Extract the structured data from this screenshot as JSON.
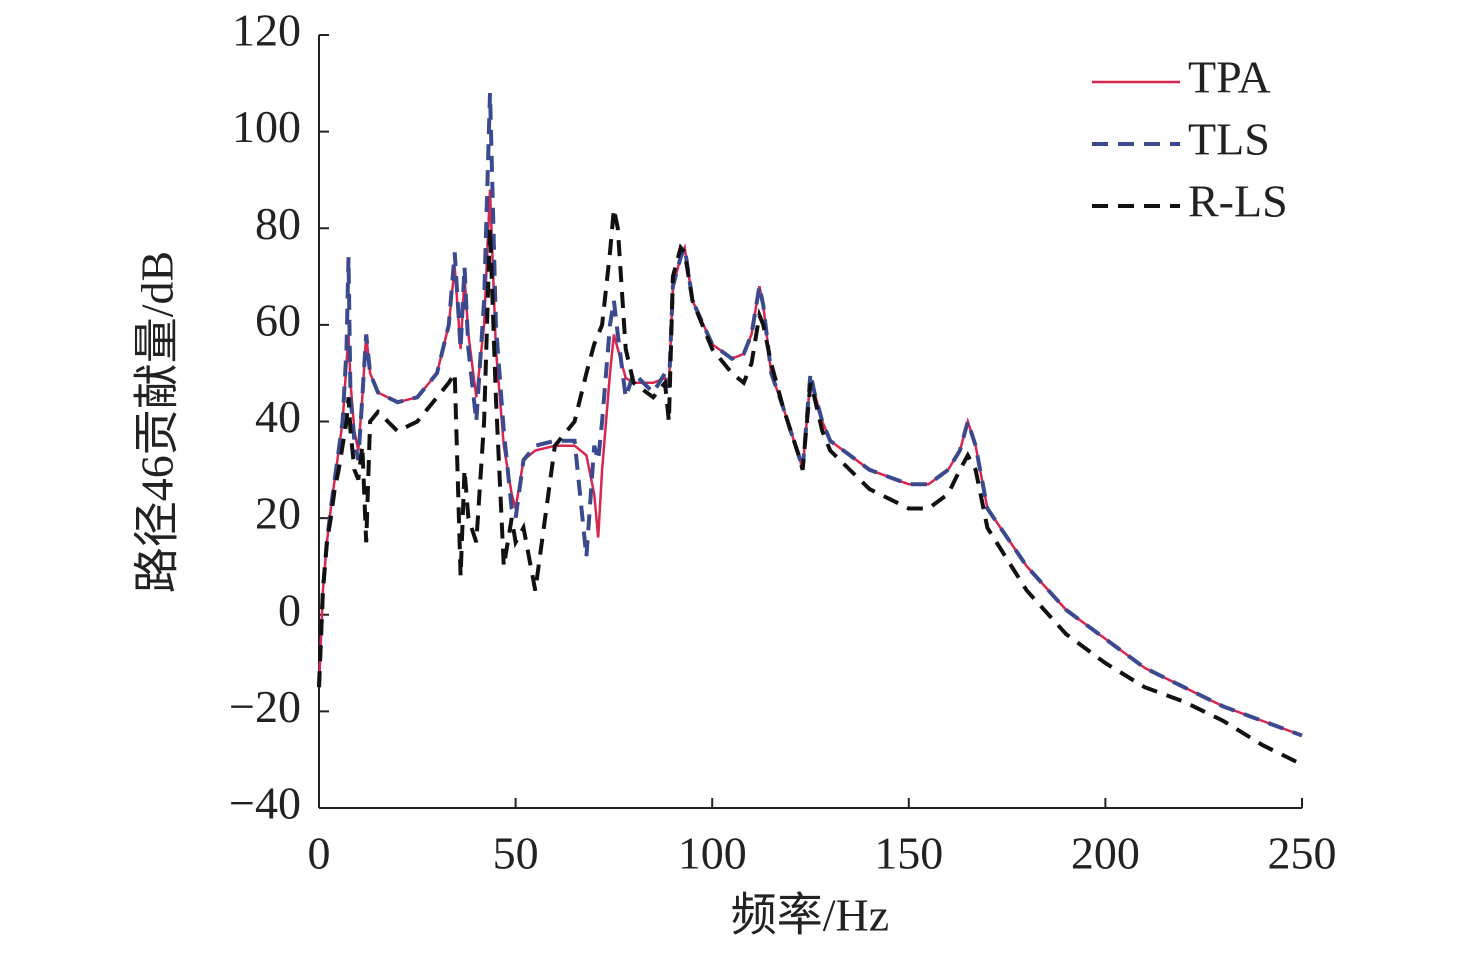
{
  "chart_data": {
    "type": "line",
    "xlabel": "频率/Hz",
    "ylabel": "路径46贡献量/dB",
    "x": [
      0,
      1,
      2,
      3,
      4,
      5,
      6,
      7,
      7.5,
      8,
      9,
      10,
      11,
      12,
      13,
      15,
      20,
      25,
      30,
      33,
      34.5,
      36,
      37,
      38,
      40,
      42,
      43.5,
      45,
      47,
      49,
      50,
      52,
      55,
      60,
      65,
      68,
      70,
      71,
      72,
      74,
      75,
      76,
      78,
      80,
      85,
      88,
      89,
      90,
      92,
      93,
      95,
      100,
      105,
      108,
      110,
      112,
      113,
      115,
      118,
      120,
      122,
      123,
      125,
      126,
      128,
      130,
      140,
      150,
      155,
      160,
      163,
      165,
      167,
      170,
      180,
      190,
      200,
      210,
      220,
      230,
      240,
      250
    ],
    "series": [
      {
        "name": "TPA",
        "color": "#d9264f",
        "dash": false,
        "values": [
          -15,
          5,
          15,
          22,
          28,
          34,
          40,
          52,
          58,
          48,
          38,
          34,
          45,
          58,
          50,
          46,
          44,
          45,
          50,
          60,
          72,
          55,
          70,
          58,
          45,
          60,
          88,
          55,
          35,
          25,
          22,
          32,
          34,
          35,
          35,
          33,
          25,
          16,
          30,
          50,
          58,
          55,
          49,
          48,
          48,
          49,
          47,
          68,
          74,
          76,
          65,
          56,
          53,
          54,
          58,
          68,
          64,
          50,
          43,
          38,
          33,
          30,
          49,
          46,
          40,
          36,
          30,
          27,
          27,
          30,
          34,
          40,
          35,
          22,
          10,
          1,
          -5,
          -11,
          -15,
          -19,
          -22,
          -25
        ]
      },
      {
        "name": "TLS",
        "color": "#3b4a8f",
        "dash": true,
        "values": [
          -15,
          5,
          15,
          22,
          28,
          34,
          40,
          55,
          74,
          45,
          36,
          32,
          45,
          58,
          50,
          46,
          44,
          45,
          50,
          60,
          75,
          55,
          72,
          55,
          40,
          65,
          108,
          60,
          38,
          22,
          20,
          32,
          35,
          36,
          36,
          12,
          35,
          32,
          40,
          60,
          65,
          58,
          45,
          50,
          46,
          50,
          47,
          68,
          74,
          76,
          65,
          56,
          53,
          54,
          58,
          68,
          64,
          50,
          43,
          38,
          33,
          30,
          50,
          46,
          40,
          36,
          30,
          27,
          27,
          30,
          34,
          40,
          35,
          22,
          10,
          1,
          -5,
          -11,
          -15,
          -19,
          -22,
          -25
        ]
      },
      {
        "name": "R-LS",
        "color": "#111111",
        "dash": true,
        "values": [
          -15,
          5,
          15,
          20,
          26,
          30,
          35,
          40,
          45,
          38,
          30,
          28,
          35,
          15,
          40,
          42,
          38,
          40,
          45,
          48,
          50,
          8,
          30,
          20,
          15,
          40,
          80,
          45,
          10,
          20,
          15,
          18,
          5,
          35,
          40,
          50,
          56,
          58,
          60,
          75,
          84,
          80,
          55,
          48,
          45,
          48,
          40,
          70,
          76,
          75,
          65,
          55,
          50,
          48,
          52,
          62,
          60,
          52,
          43,
          38,
          33,
          30,
          48,
          45,
          38,
          34,
          26,
          22,
          22,
          25,
          30,
          33,
          30,
          18,
          5,
          -4,
          -10,
          -15,
          -18,
          -22,
          -27,
          -31
        ]
      }
    ],
    "xlim": [
      0,
      250
    ],
    "xticks": [
      0,
      50,
      100,
      150,
      200,
      250
    ],
    "ylim": [
      -40,
      120
    ],
    "yticks": [
      {
        "value": -40,
        "label": "−40"
      },
      {
        "value": -20,
        "label": "−20"
      },
      0,
      20,
      40,
      60,
      80,
      100,
      120
    ],
    "legend": "upper right",
    "grid": false
  }
}
